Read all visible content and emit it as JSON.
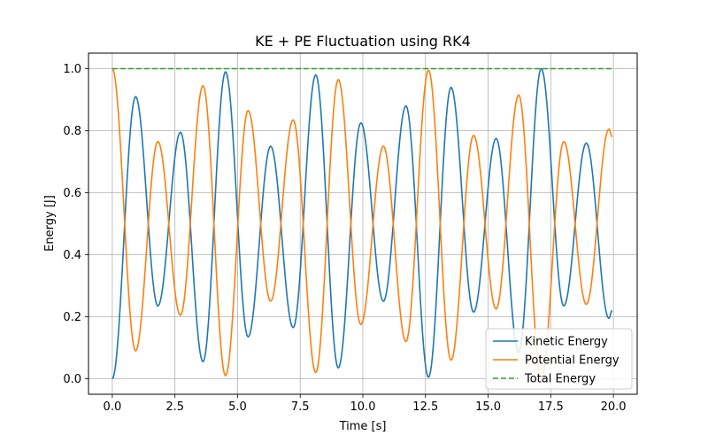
{
  "chart_data": {
    "type": "line",
    "title": "KE + PE Fluctuation using RK4",
    "xlabel": "Time [s]",
    "ylabel": "Energy [J]",
    "xlim": [
      -0.95,
      20.95
    ],
    "ylim": [
      -0.05,
      1.05
    ],
    "xticks": [
      0.0,
      2.5,
      5.0,
      7.5,
      10.0,
      12.5,
      15.0,
      17.5,
      20.0
    ],
    "xtick_labels": [
      "0.0",
      "2.5",
      "5.0",
      "7.5",
      "10.0",
      "12.5",
      "15.0",
      "17.5",
      "20.0"
    ],
    "yticks": [
      0.0,
      0.2,
      0.4,
      0.6,
      0.8,
      1.0
    ],
    "ytick_labels": [
      "0.0",
      "0.2",
      "0.4",
      "0.6",
      "0.8",
      "1.0"
    ],
    "grid": true,
    "legend_position": "lower-right",
    "series": [
      {
        "name": "Kinetic Energy",
        "color": "#1f77b4",
        "style": "solid",
        "x": [
          0.0,
          0.93,
          1.82,
          2.72,
          3.62,
          4.52,
          5.42,
          6.32,
          7.22,
          8.12,
          9.02,
          9.92,
          10.82,
          11.72,
          12.62,
          13.52,
          14.42,
          15.32,
          16.22,
          17.12,
          18.02,
          18.92,
          19.82,
          19.95
        ],
        "y": [
          0.0,
          0.91,
          0.235,
          0.795,
          0.055,
          0.99,
          0.135,
          0.75,
          0.165,
          0.98,
          0.035,
          0.825,
          0.25,
          0.88,
          0.005,
          0.94,
          0.215,
          0.775,
          0.085,
          1.0,
          0.235,
          0.76,
          0.195,
          0.22
        ]
      },
      {
        "name": "Potential Energy",
        "color": "#ff7f0e",
        "style": "solid",
        "x": [
          0.0,
          0.93,
          1.82,
          2.72,
          3.62,
          4.52,
          5.42,
          6.32,
          7.22,
          8.12,
          9.02,
          9.92,
          10.82,
          11.72,
          12.62,
          13.52,
          14.42,
          15.32,
          16.22,
          17.12,
          18.02,
          18.92,
          19.82,
          19.95
        ],
        "y": [
          1.0,
          0.09,
          0.765,
          0.205,
          0.945,
          0.01,
          0.865,
          0.25,
          0.835,
          0.02,
          0.965,
          0.175,
          0.75,
          0.12,
          0.995,
          0.06,
          0.785,
          0.225,
          0.915,
          0.0,
          0.765,
          0.24,
          0.805,
          0.78
        ]
      },
      {
        "name": "Total Energy",
        "color": "#2ca02c",
        "style": "dashed",
        "x": [
          0.0,
          19.95
        ],
        "y": [
          1.0,
          1.0
        ]
      }
    ]
  }
}
